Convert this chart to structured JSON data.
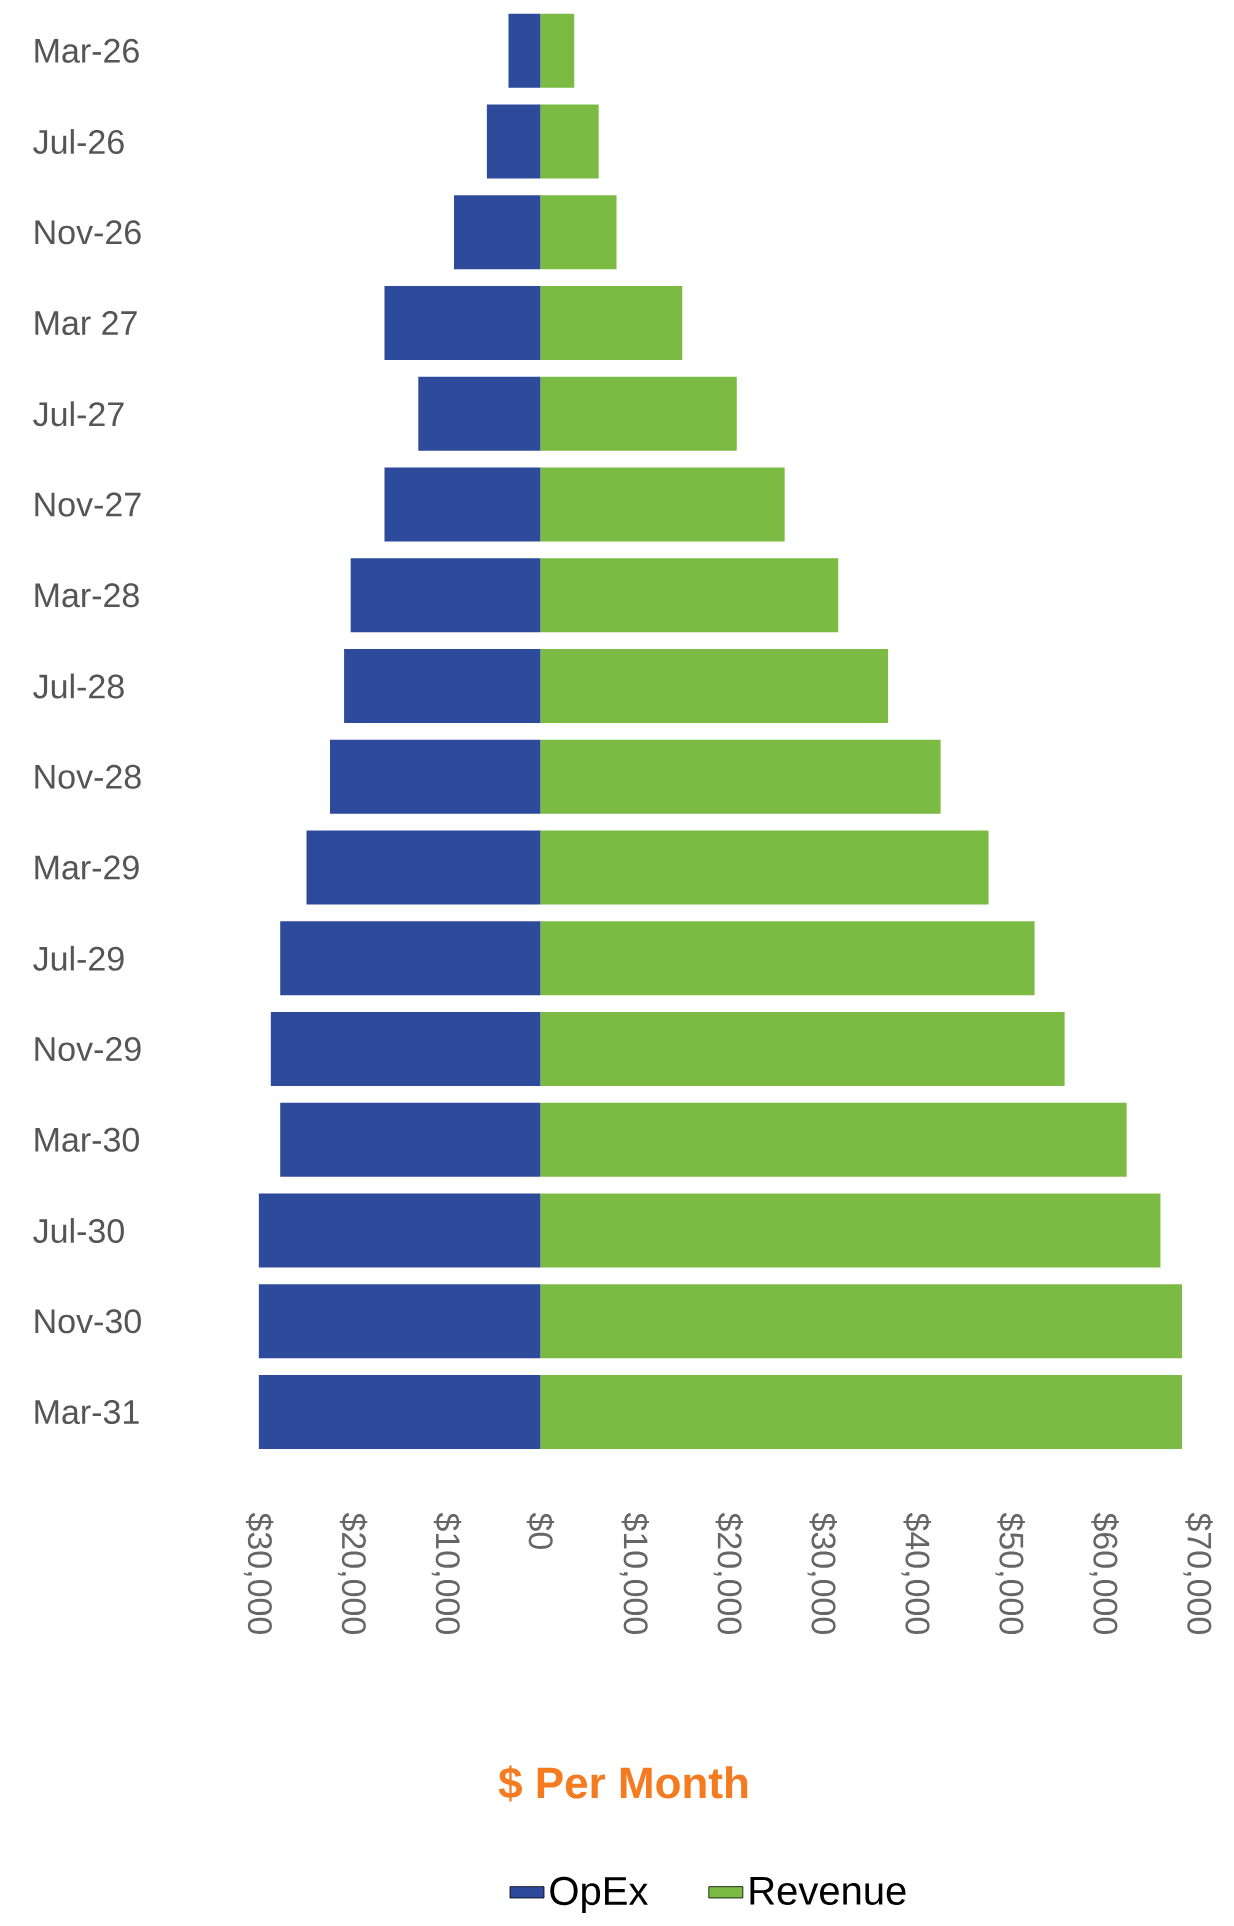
{
  "chart_data": {
    "type": "bar",
    "orientation": "horizontal",
    "xlabel": "$ Per Month",
    "categories": [
      "Mar-26",
      "Jul-26",
      "Nov-26",
      "Mar 27",
      "Jul-27",
      "Nov-27",
      "Mar-28",
      "Jul-28",
      "Nov-28",
      "Mar-29",
      "Jul-29",
      "Nov-29",
      "Mar-30",
      "Jul-30",
      "Nov-30",
      "Mar-31"
    ],
    "series": [
      {
        "name": "OpEx",
        "color": "#2e4a9b",
        "values": [
          -3400,
          -5700,
          -9200,
          -16600,
          -13000,
          -16600,
          -20200,
          -20900,
          -22400,
          -24900,
          -27700,
          -28700,
          -27700,
          -30000,
          -30000,
          -30000
        ]
      },
      {
        "name": "Revenue",
        "color": "#7bbb44",
        "values": [
          3600,
          6200,
          8100,
          15100,
          20900,
          26000,
          31700,
          37000,
          42600,
          47700,
          52600,
          55800,
          62400,
          66000,
          68300,
          68300
        ]
      }
    ],
    "xlim": [
      -30000,
      70000
    ],
    "xticks": [
      {
        "value": -30000,
        "label": "$30,000"
      },
      {
        "value": -20000,
        "label": "$20,000"
      },
      {
        "value": -10000,
        "label": "$10,000"
      },
      {
        "value": 0,
        "label": "$0"
      },
      {
        "value": 10000,
        "label": "$10,000"
      },
      {
        "value": 20000,
        "label": "$20,000"
      },
      {
        "value": 30000,
        "label": "$30,000"
      },
      {
        "value": 40000,
        "label": "$40,000"
      },
      {
        "value": 50000,
        "label": "$50,000"
      },
      {
        "value": 60000,
        "label": "$60,000"
      },
      {
        "value": 70000,
        "label": "$70,000"
      }
    ],
    "legend": "bottom",
    "stacked": true
  }
}
